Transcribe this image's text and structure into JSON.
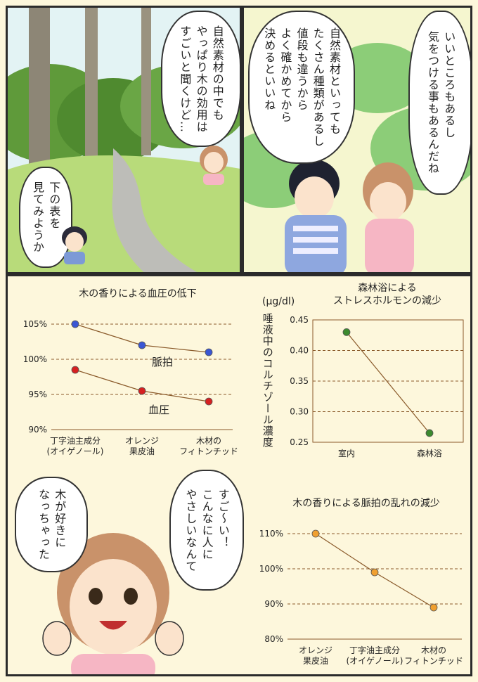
{
  "panel1": {
    "bubble_nature": "自然素材の中でも\nやっぱり木の効用は\nすごいと聞くけど…",
    "bubble_table": "下の表を\n見てみようか"
  },
  "panel2": {
    "bubble_boy": "自然素材といっても\nたくさん種類があるし\n値段も違うから\nよく確かめてから\n決めるといいね",
    "bubble_girl": "いいところもあるし\n気をつける事もあるんだね"
  },
  "panel4": {
    "bubble_wow": "すご〜い！\nこんなに人に\nやさしいなんて",
    "bubble_like": "木が好きに\nなっちゃった"
  },
  "colors": {
    "pulse": "#3a56d4",
    "pressure": "#d62020",
    "cortisol": "#3c8a2e",
    "arrhythmia": "#f0a030",
    "line": "#8a5a2a",
    "panel_bg": "#fdf7dc"
  },
  "chart_data": [
    {
      "type": "line",
      "title": "木の香りによる血圧の低下",
      "categories": [
        "丁字油主成分\n(オイゲノール)",
        "オレンジ\n果皮油",
        "木材の\nフィトンチッド"
      ],
      "yticks": [
        "105%",
        "100%",
        "95%",
        "90%"
      ],
      "ylim": [
        90,
        105
      ],
      "grid": true,
      "series": [
        {
          "name": "脈拍",
          "values": [
            105,
            102,
            101
          ]
        },
        {
          "name": "血圧",
          "values": [
            98.5,
            95.5,
            94
          ]
        }
      ]
    },
    {
      "type": "line",
      "title": "森林浴による\nストレスホルモンの減少",
      "unit": "(μg/dl)",
      "ylabel": "唾液中のコルチゾール濃度",
      "categories": [
        "室内",
        "森林浴"
      ],
      "yticks": [
        "0.45",
        "0.40",
        "0.35",
        "0.30",
        "0.25"
      ],
      "ylim": [
        0.25,
        0.45
      ],
      "grid": true,
      "series": [
        {
          "values": [
            0.43,
            0.265
          ]
        }
      ]
    },
    {
      "type": "line",
      "title": "木の香りによる脈拍の乱れの減少",
      "categories": [
        "オレンジ\n果皮油",
        "丁字油主成分\n(オイゲノール)",
        "木材の\nフィトンチッド"
      ],
      "yticks": [
        "110%",
        "100%",
        "90%",
        "80%"
      ],
      "ylim": [
        80,
        110
      ],
      "grid": true,
      "series": [
        {
          "values": [
            110,
            99,
            89
          ]
        }
      ]
    }
  ]
}
